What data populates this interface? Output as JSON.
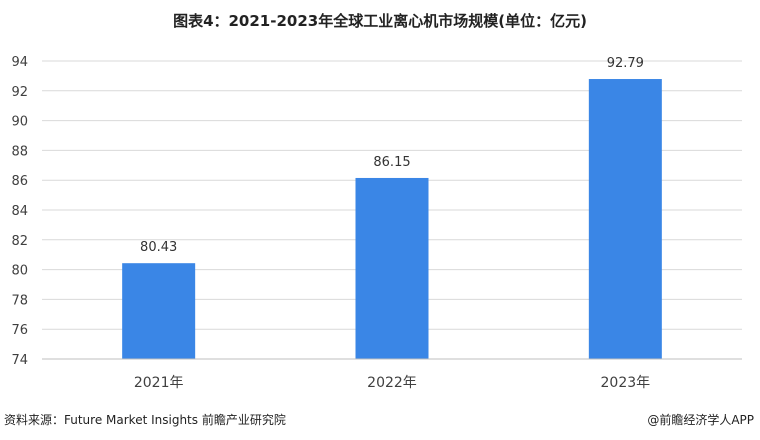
{
  "title": "图表4：2021-2023年全球工业离心机市场规模(单位：亿元)",
  "chart_data": {
    "type": "bar",
    "title": "图表4：2021-2023年全球工业离心机市场规模(单位：亿元)",
    "categories": [
      "2021年",
      "2022年",
      "2023年"
    ],
    "values": [
      80.43,
      86.15,
      92.79
    ],
    "value_labels": [
      "80.43",
      "86.15",
      "92.79"
    ],
    "ylim": [
      74,
      94
    ],
    "yticks": [
      74,
      76,
      78,
      80,
      82,
      84,
      86,
      88,
      90,
      92,
      94
    ],
    "xlabel": "",
    "ylabel": "",
    "grid": true,
    "bar_color": "#3a86e6"
  },
  "footer": {
    "source": "资料来源：Future Market Insights 前瞻产业研究院",
    "credit": "@前瞻经济学人APP"
  },
  "colors": {
    "bar": "#3a86e6",
    "grid": "#d9d9d9",
    "axis": "#bfbfbf"
  }
}
